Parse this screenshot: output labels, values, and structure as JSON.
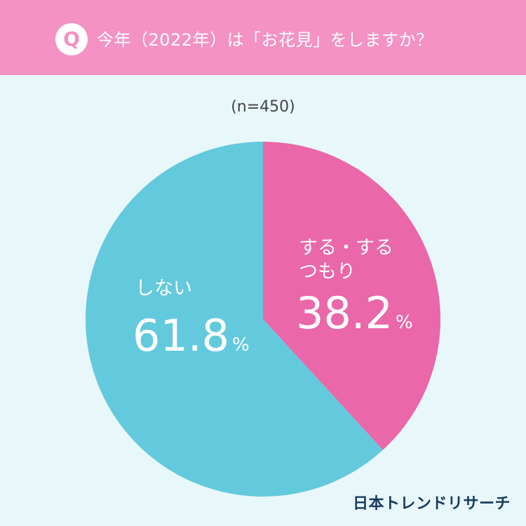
{
  "header": {
    "badge_letter": "Q",
    "question": "今年（2022年）は「お花見」をしますか？"
  },
  "sample_size": "(n=450)",
  "brand": "日本トレンドリサーチ",
  "colors": {
    "header_bg": "#f392c3",
    "page_bg": "#e8f7fa",
    "slice_yes": "#ea67a9",
    "slice_no": "#63c9dd"
  },
  "chart_data": {
    "type": "pie",
    "title": "今年（2022年）は「お花見」をしますか？",
    "start": "12 o'clock, clockwise",
    "unit": "%",
    "slices": [
      {
        "label_lines": [
          "する・する",
          "つもり"
        ],
        "value": 38.2,
        "value_text": "38.2",
        "color": "#ea67a9"
      },
      {
        "label_lines": [
          "しない"
        ],
        "value": 61.8,
        "value_text": "61.8",
        "color": "#63c9dd"
      }
    ]
  }
}
